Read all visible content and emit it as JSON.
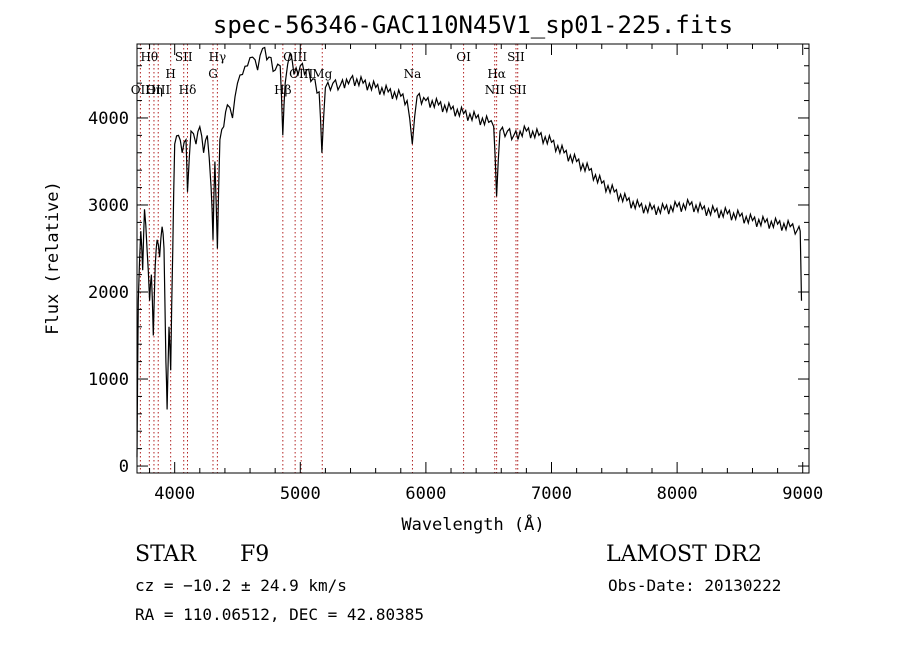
{
  "chart_data": {
    "type": "line",
    "title": "spec-56346-GAC110N45V1_sp01-225.fits",
    "xlabel": "Wavelength (Å)",
    "ylabel": "Flux (relative)",
    "xlim": [
      3700,
      9050
    ],
    "ylim": [
      -80,
      4850
    ],
    "xticks": [
      4000,
      5000,
      6000,
      7000,
      8000,
      9000
    ],
    "yticks": [
      0,
      1000,
      2000,
      3000,
      4000
    ],
    "line_color": "#000000",
    "marker_color": "#b22222",
    "spectrum": [
      [
        3700,
        100
      ],
      [
        3710,
        1900
      ],
      [
        3730,
        2700
      ],
      [
        3745,
        2250
      ],
      [
        3760,
        2950
      ],
      [
        3780,
        2500
      ],
      [
        3800,
        1900
      ],
      [
        3815,
        2200
      ],
      [
        3830,
        1500
      ],
      [
        3845,
        2300
      ],
      [
        3860,
        2600
      ],
      [
        3880,
        2400
      ],
      [
        3900,
        2750
      ],
      [
        3915,
        2500
      ],
      [
        3930,
        1200
      ],
      [
        3940,
        650
      ],
      [
        3955,
        1600
      ],
      [
        3968,
        1100
      ],
      [
        3985,
        2500
      ],
      [
        4000,
        3700
      ],
      [
        4030,
        3800
      ],
      [
        4060,
        3600
      ],
      [
        4090,
        3750
      ],
      [
        4102,
        3150
      ],
      [
        4130,
        3850
      ],
      [
        4170,
        3700
      ],
      [
        4200,
        3900
      ],
      [
        4230,
        3600
      ],
      [
        4260,
        3800
      ],
      [
        4290,
        3200
      ],
      [
        4305,
        2600
      ],
      [
        4320,
        3500
      ],
      [
        4340,
        2500
      ],
      [
        4360,
        3750
      ],
      [
        4390,
        3900
      ],
      [
        4420,
        4150
      ],
      [
        4460,
        4000
      ],
      [
        4500,
        4400
      ],
      [
        4540,
        4500
      ],
      [
        4580,
        4600
      ],
      [
        4620,
        4700
      ],
      [
        4660,
        4550
      ],
      [
        4700,
        4800
      ],
      [
        4750,
        4700
      ],
      [
        4800,
        4550
      ],
      [
        4840,
        4600
      ],
      [
        4861,
        3800
      ],
      [
        4880,
        4400
      ],
      [
        4920,
        4750
      ],
      [
        4950,
        4500
      ],
      [
        5000,
        4600
      ],
      [
        5050,
        4550
      ],
      [
        5100,
        4450
      ],
      [
        5150,
        4300
      ],
      [
        5172,
        3600
      ],
      [
        5200,
        4350
      ],
      [
        5260,
        4400
      ],
      [
        5320,
        4380
      ],
      [
        5400,
        4450
      ],
      [
        5500,
        4400
      ],
      [
        5600,
        4350
      ],
      [
        5700,
        4300
      ],
      [
        5800,
        4250
      ],
      [
        5850,
        4200
      ],
      [
        5892,
        3700
      ],
      [
        5930,
        4250
      ],
      [
        6000,
        4200
      ],
      [
        6100,
        4150
      ],
      [
        6200,
        4100
      ],
      [
        6300,
        4050
      ],
      [
        6400,
        4000
      ],
      [
        6500,
        3950
      ],
      [
        6540,
        3900
      ],
      [
        6563,
        3100
      ],
      [
        6590,
        3850
      ],
      [
        6650,
        3850
      ],
      [
        6700,
        3800
      ],
      [
        6800,
        3850
      ],
      [
        6900,
        3800
      ],
      [
        7000,
        3720
      ],
      [
        7100,
        3600
      ],
      [
        7200,
        3500
      ],
      [
        7300,
        3400
      ],
      [
        7400,
        3250
      ],
      [
        7500,
        3150
      ],
      [
        7600,
        3050
      ],
      [
        7700,
        2980
      ],
      [
        7800,
        2950
      ],
      [
        7900,
        2950
      ],
      [
        8000,
        2980
      ],
      [
        8100,
        3000
      ],
      [
        8200,
        2950
      ],
      [
        8300,
        2920
      ],
      [
        8400,
        2900
      ],
      [
        8500,
        2870
      ],
      [
        8600,
        2820
      ],
      [
        8700,
        2800
      ],
      [
        8800,
        2780
      ],
      [
        8900,
        2750
      ],
      [
        8960,
        2720
      ],
      [
        8980,
        2700
      ],
      [
        8990,
        1900
      ]
    ],
    "lines": [
      {
        "name": "OII",
        "wavelength": 3727,
        "row": 2
      },
      {
        "name": "Hθ",
        "wavelength": 3798,
        "row": 0
      },
      {
        "name": "Hη",
        "wavelength": 3835,
        "row": 3
      },
      {
        "name": "OIII",
        "wavelength": 3869,
        "row": 3
      },
      {
        "name": "SII",
        "wavelength": 4072,
        "row": 0
      },
      {
        "name": "H",
        "wavelength": 3968,
        "row": 1
      },
      {
        "name": "Hδ",
        "wavelength": 4102,
        "row": 3
      },
      {
        "name": "Hγ",
        "wavelength": 4340,
        "row": 0
      },
      {
        "name": "G",
        "wavelength": 4305,
        "row": 1
      },
      {
        "name": "Hβ",
        "wavelength": 4861,
        "row": 3
      },
      {
        "name": "OIII",
        "wavelength": 4959,
        "row": 0
      },
      {
        "name": "OIII",
        "wavelength": 5007,
        "row": 1
      },
      {
        "name": "Mg",
        "wavelength": 5175,
        "row": 1
      },
      {
        "name": "Na",
        "wavelength": 5893,
        "row": 1
      },
      {
        "name": "OI",
        "wavelength": 6300,
        "row": 0
      },
      {
        "name": "Hα",
        "wavelength": 6563,
        "row": 1
      },
      {
        "name": "NII",
        "wavelength": 6548,
        "row": 3
      },
      {
        "name": "SII",
        "wavelength": 6717,
        "row": 0
      },
      {
        "name": "SII",
        "wavelength": 6731,
        "row": 3
      }
    ]
  },
  "info": {
    "object_class": "STAR",
    "subclass": "F9",
    "survey": "LAMOST DR2",
    "cz": "cz = −10.2 ± 24.9 km/s",
    "obs_date": "Obs-Date: 20130222",
    "coords": "RA = 110.06512, DEC =  42.80385"
  }
}
